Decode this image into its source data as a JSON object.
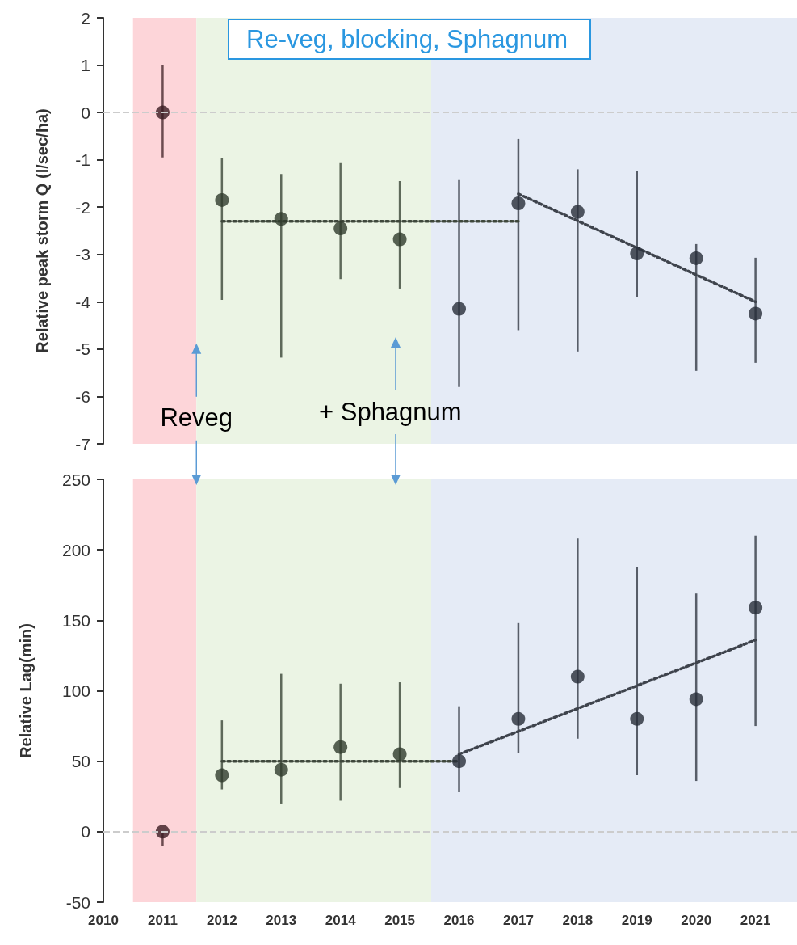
{
  "chart_data": [
    {
      "type": "scatter",
      "title": "Re-veg, blocking, Sphagnum",
      "ylabel": "Relative peak storm Q (l/sec/ha)",
      "xlim": [
        2010,
        2021.7
      ],
      "xticks": [
        2010,
        2011,
        2012,
        2013,
        2014,
        2015,
        2016,
        2017,
        2018,
        2019,
        2020,
        2021
      ],
      "ylim": [
        -7,
        2
      ],
      "yticks": [
        -7,
        -6,
        -5,
        -4,
        -3,
        -2,
        -1,
        0,
        1,
        2
      ],
      "tick_labels": "y",
      "grid": false,
      "series": [
        {
          "marker": "circle",
          "x": [
            2011,
            2012,
            2013,
            2014,
            2015,
            2016,
            2017,
            2018,
            2019,
            2020,
            2021
          ],
          "values": [
            0,
            -1.85,
            -2.25,
            -2.45,
            -2.68,
            -4.15,
            -1.92,
            -2.1,
            -2.98,
            -3.08,
            -4.25
          ],
          "colors": [
            "#3b1c22",
            "#2f3b2c",
            "#2f3b2c",
            "#2f3b2c",
            "#2f3b2c",
            "#272d38",
            "#272d38",
            "#272d38",
            "#272d38",
            "#272d38",
            "#272d38"
          ],
          "errors": [
            [
              -0.95,
              1
            ],
            [
              -3.96,
              -0.97
            ],
            [
              -5.18,
              -1.3
            ],
            [
              -3.52,
              -1.07
            ],
            [
              -3.72,
              -1.45
            ],
            [
              -5.8,
              -1.43
            ],
            [
              -4.6,
              -0.56
            ],
            [
              -5.05,
              -1.2
            ],
            [
              -3.9,
              -1.23
            ],
            [
              -5.46,
              -2.78
            ],
            [
              -5.29,
              -3.07
            ]
          ]
        },
        {
          "type": "line",
          "line_style": "dotted",
          "color": "#3e473b",
          "x": [
            2012,
            2017
          ],
          "values": [
            -2.3,
            -2.3
          ]
        },
        {
          "type": "line",
          "line_style": "dotted",
          "color": "#3e434c",
          "x": [
            2017,
            2021
          ],
          "values": [
            -1.72,
            -4.0
          ]
        }
      ],
      "ref_lines": [
        {
          "axis": "y",
          "value": 0,
          "line_style": "dashed",
          "color": "#cccccc"
        }
      ],
      "bands": [
        {
          "axis": "x",
          "from": 2010.5,
          "to": 2011.57,
          "color": "#fdd5d9"
        },
        {
          "axis": "x",
          "from": 2011.57,
          "to": 2015.53,
          "color": "#ebf4e4"
        },
        {
          "axis": "x",
          "from": 2015.53,
          "to": 2021.7,
          "color": "#e5ebf6"
        }
      ],
      "annotations": [
        {
          "text": "Reveg",
          "x": 2011.57,
          "y": -6.45
        },
        "+ Sphagnum"
      ]
    },
    {
      "type": "scatter",
      "ylabel": "Relative Lag(min)",
      "xlim": [
        2010,
        2021.7
      ],
      "xticks": [
        2010,
        2011,
        2012,
        2013,
        2014,
        2015,
        2016,
        2017,
        2018,
        2019,
        2020,
        2021
      ],
      "ylim": [
        -50,
        250
      ],
      "yticks": [
        -50,
        0,
        50,
        100,
        150,
        200,
        250
      ],
      "grid": false,
      "series": [
        {
          "marker": "circle",
          "x": [
            2011,
            2012,
            2013,
            2014,
            2015,
            2016,
            2017,
            2018,
            2019,
            2020,
            2021
          ],
          "values": [
            0,
            40,
            44,
            60,
            55,
            50,
            80,
            110,
            80,
            94,
            159
          ],
          "colors": [
            "#3b1c22",
            "#2f3b2c",
            "#2f3b2c",
            "#2f3b2c",
            "#2f3b2c",
            "#272d38",
            "#272d38",
            "#272d38",
            "#272d38",
            "#272d38",
            "#272d38"
          ],
          "errors": [
            [
              -10,
              0
            ],
            [
              30,
              79
            ],
            [
              20,
              112
            ],
            [
              22,
              105
            ],
            [
              31,
              106
            ],
            [
              28,
              89
            ],
            [
              56,
              148
            ],
            [
              66,
              208
            ],
            [
              40,
              188
            ],
            [
              36,
              169
            ],
            [
              75,
              210
            ]
          ]
        },
        {
          "type": "line",
          "line_style": "dotted",
          "color": "#3e473b",
          "x": [
            2012,
            2016
          ],
          "values": [
            50,
            50
          ]
        },
        {
          "type": "line",
          "line_style": "dotted",
          "color": "#3e434c",
          "x": [
            2016,
            2021
          ],
          "values": [
            55,
            136
          ]
        }
      ],
      "ref_lines": [
        {
          "axis": "y",
          "value": 0,
          "line_style": "dashed",
          "color": "#cccccc"
        }
      ],
      "bands": [
        {
          "axis": "x",
          "from": 2010.5,
          "to": 2011.57,
          "color": "#fdd5d9"
        },
        {
          "axis": "x",
          "from": 2011.57,
          "to": 2015.53,
          "color": "#ebf4e4"
        },
        {
          "axis": "x",
          "from": 2015.53,
          "to": 2021.7,
          "color": "#e5ebf6"
        }
      ]
    }
  ]
}
